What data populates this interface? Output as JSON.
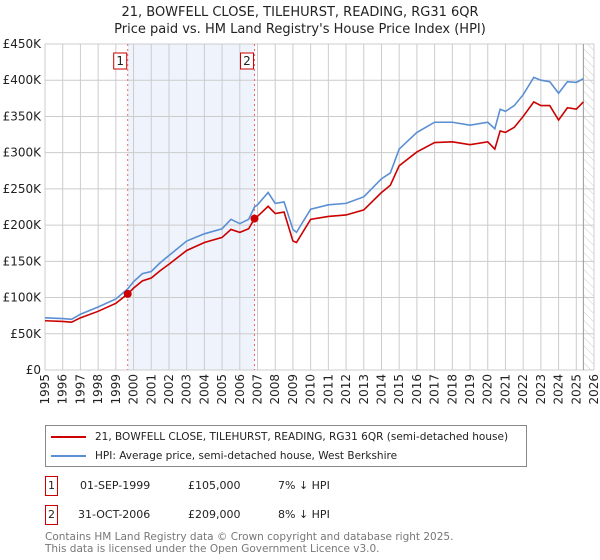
{
  "chart_data": {
    "type": "line",
    "title": "21, BOWFELL CLOSE, TILEHURST, READING, RG31 6QR",
    "subtitle": "Price paid vs. HM Land Registry's House Price Index (HPI)",
    "xlim": [
      1995,
      2026
    ],
    "ylim": [
      0,
      450000
    ],
    "x_ticks": [
      "1995",
      "1996",
      "1997",
      "1998",
      "1999",
      "2000",
      "2001",
      "2002",
      "2003",
      "2004",
      "2005",
      "2006",
      "2007",
      "2008",
      "2009",
      "2010",
      "2011",
      "2012",
      "2013",
      "2014",
      "2015",
      "2016",
      "2017",
      "2018",
      "2019",
      "2020",
      "2021",
      "2022",
      "2023",
      "2024",
      "2025",
      "2026"
    ],
    "y_ticks": [
      {
        "v": 0,
        "l": "£0"
      },
      {
        "v": 50000,
        "l": "£50K"
      },
      {
        "v": 100000,
        "l": "£100K"
      },
      {
        "v": 150000,
        "l": "£150K"
      },
      {
        "v": 200000,
        "l": "£200K"
      },
      {
        "v": 250000,
        "l": "£250K"
      },
      {
        "v": 300000,
        "l": "£300K"
      },
      {
        "v": 350000,
        "l": "£350K"
      },
      {
        "v": 400000,
        "l": "£400K"
      },
      {
        "v": 450000,
        "l": "£450K"
      }
    ],
    "grid": true,
    "series": [
      {
        "name": "21, BOWFELL CLOSE, TILEHURST, READING, RG31 6QR (semi-detached house)",
        "color": "#cc0000",
        "x": [
          1995,
          1996,
          1996.5,
          1997,
          1998,
          1999,
          1999.67,
          2000,
          2000.5,
          2001,
          2001.5,
          2002,
          2003,
          2004,
          2005,
          2005.5,
          2006,
          2006.5,
          2006.83,
          2007,
          2007.6,
          2008,
          2008.5,
          2009,
          2009.2,
          2010,
          2011,
          2012,
          2013,
          2014,
          2014.5,
          2015,
          2016,
          2017,
          2018,
          2019,
          2020,
          2020.4,
          2020.7,
          2021,
          2021.5,
          2022,
          2022.6,
          2023,
          2023.5,
          2024,
          2024.5,
          2025,
          2025.4
        ],
        "y": [
          68000,
          67000,
          66000,
          72000,
          81000,
          92000,
          105000,
          113000,
          123000,
          127000,
          137000,
          146000,
          165000,
          176000,
          183000,
          194000,
          190000,
          195000,
          209000,
          212000,
          226000,
          216000,
          218000,
          178000,
          176000,
          208000,
          212000,
          214000,
          221000,
          245000,
          255000,
          282000,
          301000,
          314000,
          315000,
          311000,
          315000,
          305000,
          330000,
          328000,
          335000,
          350000,
          370000,
          365000,
          365000,
          345000,
          362000,
          360000,
          370000
        ]
      },
      {
        "name": "HPI: Average price, semi-detached house, West Berkshire",
        "color": "#5b8fd4",
        "x": [
          1995,
          1996,
          1996.5,
          1997,
          1998,
          1999,
          1999.67,
          2000,
          2000.5,
          2001,
          2001.5,
          2002,
          2003,
          2004,
          2005,
          2005.5,
          2006,
          2006.5,
          2006.83,
          2007,
          2007.6,
          2008,
          2008.5,
          2009,
          2009.2,
          2010,
          2011,
          2012,
          2013,
          2014,
          2014.5,
          2015,
          2016,
          2017,
          2018,
          2019,
          2020,
          2020.4,
          2020.7,
          2021,
          2021.5,
          2022,
          2022.6,
          2023,
          2023.5,
          2024,
          2024.5,
          2025,
          2025.4
        ],
        "y": [
          72000,
          71000,
          70000,
          77000,
          87000,
          98000,
          112000,
          122000,
          133000,
          136000,
          148000,
          158000,
          178000,
          188000,
          195000,
          208000,
          202000,
          208000,
          225000,
          228000,
          245000,
          230000,
          232000,
          194000,
          190000,
          222000,
          228000,
          230000,
          239000,
          264000,
          272000,
          305000,
          328000,
          342000,
          342000,
          338000,
          342000,
          333000,
          360000,
          357000,
          365000,
          380000,
          404000,
          400000,
          398000,
          382000,
          398000,
          397000,
          402000
        ]
      }
    ],
    "sales": [
      {
        "n": "1",
        "x": 1999.67,
        "y": 105000
      },
      {
        "n": "2",
        "x": 2006.83,
        "y": 209000
      }
    ],
    "future_hatch_from": 2025.4
  },
  "legend": {
    "red": "21, BOWFELL CLOSE, TILEHURST, READING, RG31 6QR (semi-detached house)",
    "blue": "HPI: Average price, semi-detached house, West Berkshire"
  },
  "transactions": [
    {
      "n": "1",
      "date": "01-SEP-1999",
      "price": "£105,000",
      "hpi": "7% ↓ HPI"
    },
    {
      "n": "2",
      "date": "31-OCT-2006",
      "price": "£209,000",
      "hpi": "8% ↓ HPI"
    }
  ],
  "footer": {
    "line1": "Contains HM Land Registry data © Crown copyright and database right 2025.",
    "line2": "This data is licensed under the Open Government Licence v3.0."
  }
}
